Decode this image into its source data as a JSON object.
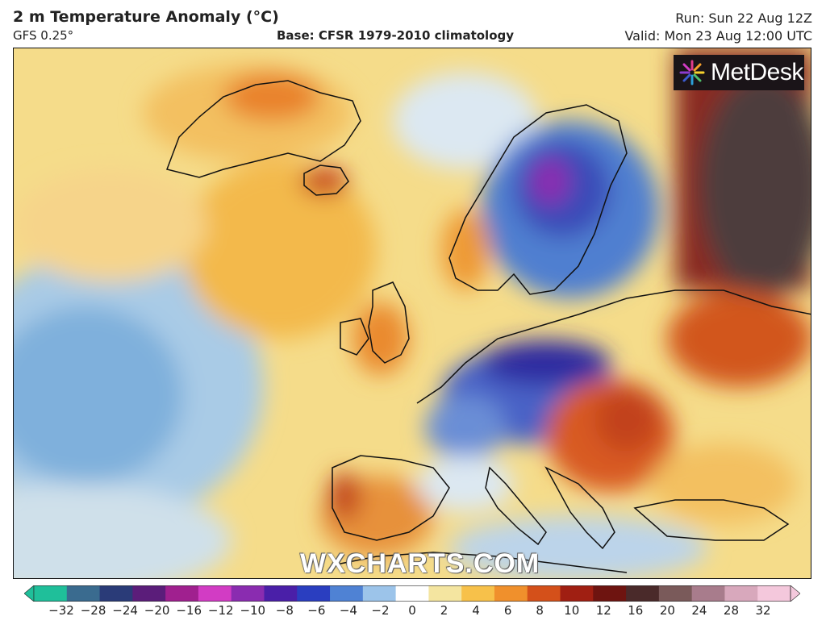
{
  "header": {
    "title": "2 m Temperature Anomaly (°C)",
    "model": "GFS 0.25°",
    "base": "Base: CFSR 1979-2010 climatology",
    "run": "Run: Sun 22 Aug 12Z",
    "valid": "Valid: Mon 23 Aug 12:00 UTC"
  },
  "brand": {
    "text": "MetDesk",
    "icon": "metdesk-burst-icon"
  },
  "watermark": "WXCHARTS.COM",
  "colorbar": {
    "ticks": [
      "−32",
      "−28",
      "−24",
      "−20",
      "−16",
      "−12",
      "−10",
      "−8",
      "−6",
      "−4",
      "−2",
      "0",
      "2",
      "4",
      "6",
      "8",
      "10",
      "12",
      "16",
      "20",
      "24",
      "28",
      "32"
    ],
    "colors": [
      "#1fbf9a",
      "#3a6b8f",
      "#2a3b78",
      "#5b1d7a",
      "#a0208f",
      "#d23cc4",
      "#8a2cb0",
      "#4a1fa8",
      "#2a3ec0",
      "#4f82d4",
      "#9cc4ea",
      "#ffffff",
      "#f4e5a0",
      "#f7c14a",
      "#f0902c",
      "#d4501a",
      "#a01f12",
      "#6e1410",
      "#4a2a2a",
      "#7a5a5a",
      "#a87c8c",
      "#d8a8bc",
      "#f4c8dc"
    ]
  }
}
